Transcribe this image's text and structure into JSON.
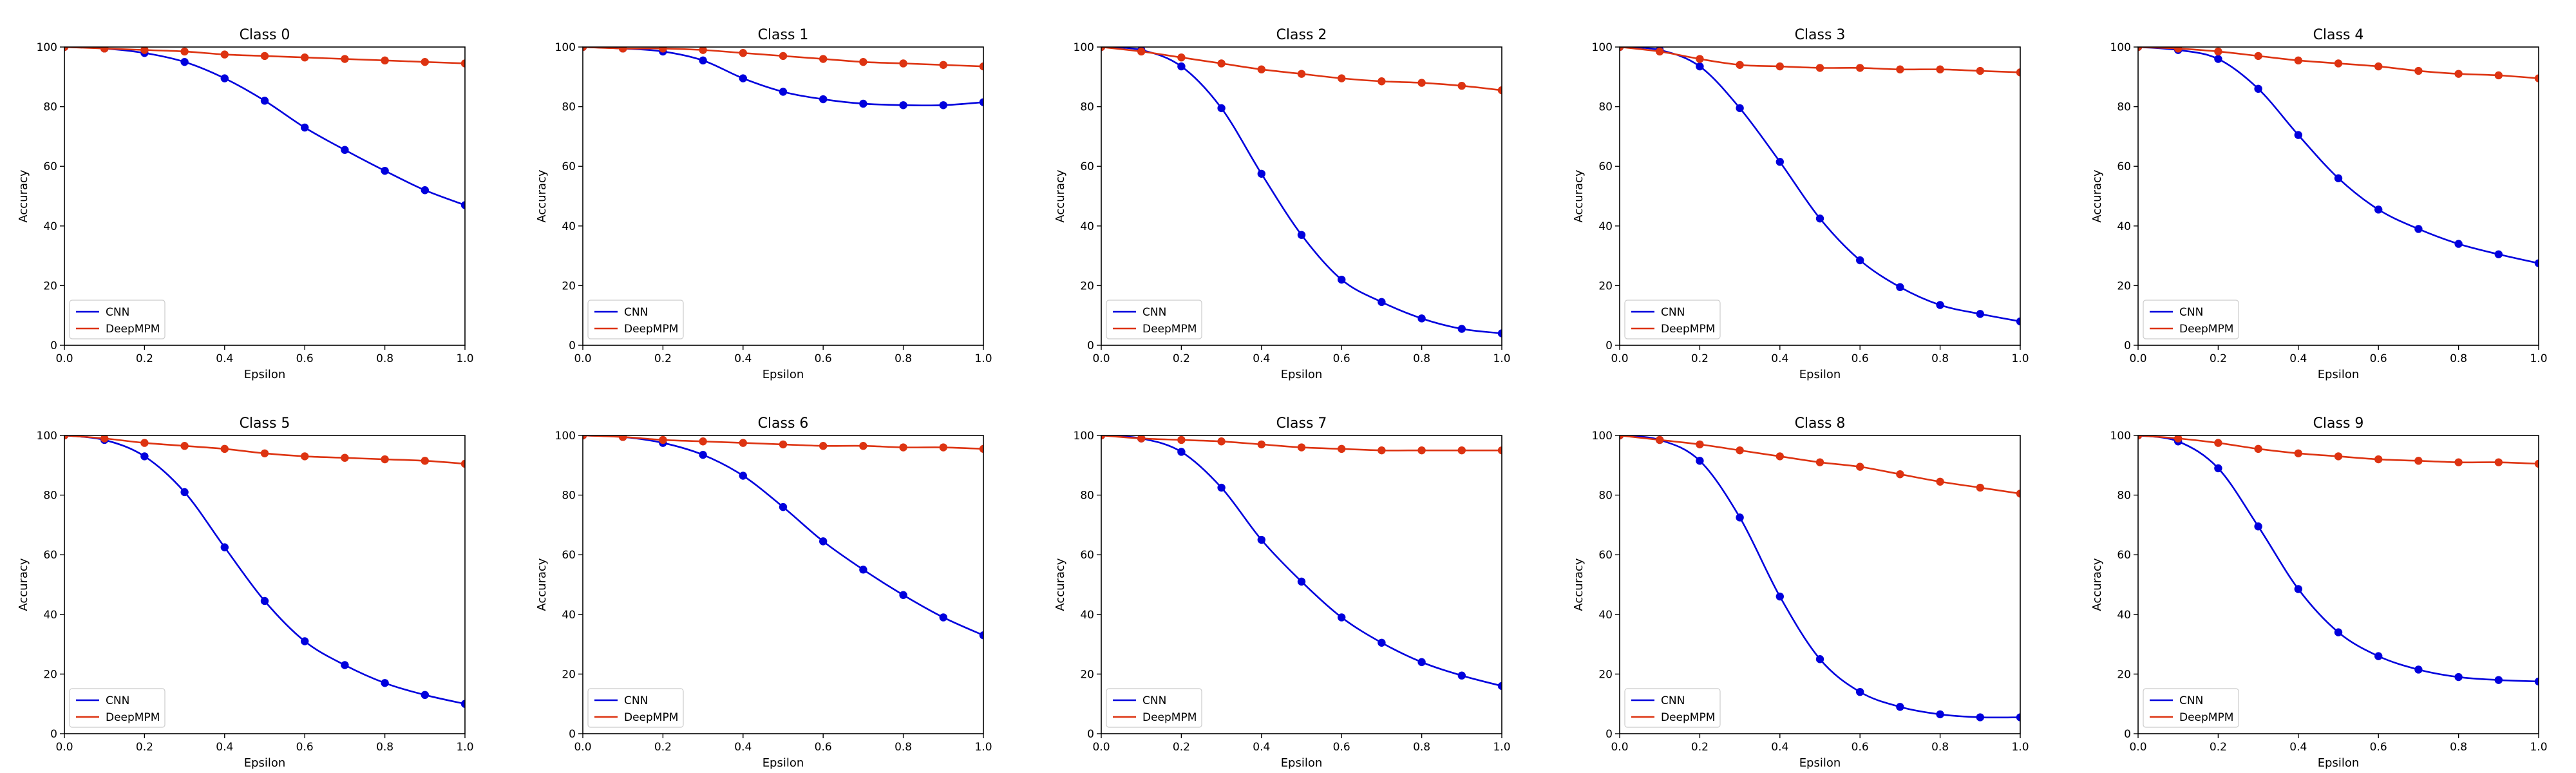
{
  "chart_data": [
    {
      "type": "line",
      "title": "Class 0",
      "xlabel": "Epsilon",
      "ylabel": "Accuracy",
      "xlim": [
        0,
        1
      ],
      "ylim": [
        0,
        100
      ],
      "xticks": [
        "0.0",
        "0.2",
        "0.4",
        "0.6",
        "0.8",
        "1.0"
      ],
      "yticks": [
        "0",
        "20",
        "40",
        "60",
        "80",
        "100"
      ],
      "x": [
        0,
        0.1,
        0.2,
        0.3,
        0.4,
        0.5,
        0.6,
        0.7,
        0.8,
        0.9,
        1.0
      ],
      "series": [
        {
          "name": "CNN",
          "color": "#0000dd",
          "values": [
            100,
            99.5,
            98,
            95,
            89.5,
            82,
            73,
            65.5,
            58.5,
            52,
            47
          ]
        },
        {
          "name": "DeepMPM",
          "color": "#dd3311",
          "values": [
            100,
            99.5,
            99,
            98.5,
            97.5,
            97,
            96.5,
            96,
            95.5,
            95,
            94.5
          ]
        }
      ],
      "legend": "lower-left",
      "grid": false
    },
    {
      "type": "line",
      "title": "Class 1",
      "xlabel": "Epsilon",
      "ylabel": "Accuracy",
      "xlim": [
        0,
        1
      ],
      "ylim": [
        0,
        100
      ],
      "xticks": [
        "0.0",
        "0.2",
        "0.4",
        "0.6",
        "0.8",
        "1.0"
      ],
      "yticks": [
        "0",
        "20",
        "40",
        "60",
        "80",
        "100"
      ],
      "x": [
        0,
        0.1,
        0.2,
        0.3,
        0.4,
        0.5,
        0.6,
        0.7,
        0.8,
        0.9,
        1.0
      ],
      "series": [
        {
          "name": "CNN",
          "color": "#0000dd",
          "values": [
            100,
            99.5,
            98.5,
            95.5,
            89.5,
            85,
            82.5,
            81,
            80.5,
            80.5,
            81.5
          ]
        },
        {
          "name": "DeepMPM",
          "color": "#dd3311",
          "values": [
            100,
            99.5,
            99.5,
            99,
            98,
            97,
            96,
            95,
            94.5,
            94,
            93.5
          ]
        }
      ],
      "legend": "lower-left",
      "grid": false
    },
    {
      "type": "line",
      "title": "Class 2",
      "xlabel": "Epsilon",
      "ylabel": "Accuracy",
      "xlim": [
        0,
        1
      ],
      "ylim": [
        0,
        100
      ],
      "xticks": [
        "0.0",
        "0.2",
        "0.4",
        "0.6",
        "0.8",
        "1.0"
      ],
      "yticks": [
        "0",
        "20",
        "40",
        "60",
        "80",
        "100"
      ],
      "x": [
        0,
        0.1,
        0.2,
        0.3,
        0.4,
        0.5,
        0.6,
        0.7,
        0.8,
        0.9,
        1.0
      ],
      "series": [
        {
          "name": "CNN",
          "color": "#0000dd",
          "values": [
            100,
            99,
            93.5,
            79.5,
            57.5,
            37,
            22,
            14.5,
            9,
            5.5,
            4
          ]
        },
        {
          "name": "DeepMPM",
          "color": "#dd3311",
          "values": [
            100,
            98.5,
            96.5,
            94.5,
            92.5,
            91,
            89.5,
            88.5,
            88,
            87,
            85.5
          ]
        }
      ],
      "legend": "lower-left",
      "grid": false
    },
    {
      "type": "line",
      "title": "Class 3",
      "xlabel": "Epsilon",
      "ylabel": "Accuracy",
      "xlim": [
        0,
        1
      ],
      "ylim": [
        0,
        100
      ],
      "xticks": [
        "0.0",
        "0.2",
        "0.4",
        "0.6",
        "0.8",
        "1.0"
      ],
      "yticks": [
        "0",
        "20",
        "40",
        "60",
        "80",
        "100"
      ],
      "x": [
        0,
        0.1,
        0.2,
        0.3,
        0.4,
        0.5,
        0.6,
        0.7,
        0.8,
        0.9,
        1.0
      ],
      "series": [
        {
          "name": "CNN",
          "color": "#0000dd",
          "values": [
            100,
            99,
            93.5,
            79.5,
            61.5,
            42.5,
            28.5,
            19.5,
            13.5,
            10.5,
            8
          ]
        },
        {
          "name": "DeepMPM",
          "color": "#dd3311",
          "values": [
            100,
            98.5,
            96,
            94,
            93.5,
            93,
            93,
            92.5,
            92.5,
            92,
            91.5
          ]
        }
      ],
      "legend": "lower-left",
      "grid": false
    },
    {
      "type": "line",
      "title": "Class 4",
      "xlabel": "Epsilon",
      "ylabel": "Accuracy",
      "xlim": [
        0,
        1
      ],
      "ylim": [
        0,
        100
      ],
      "xticks": [
        "0.0",
        "0.2",
        "0.4",
        "0.6",
        "0.8",
        "1.0"
      ],
      "yticks": [
        "0",
        "20",
        "40",
        "60",
        "80",
        "100"
      ],
      "x": [
        0,
        0.1,
        0.2,
        0.3,
        0.4,
        0.5,
        0.6,
        0.7,
        0.8,
        0.9,
        1.0
      ],
      "series": [
        {
          "name": "CNN",
          "color": "#0000dd",
          "values": [
            100,
            99,
            96,
            86,
            70.5,
            56,
            45.5,
            39,
            34,
            30.5,
            27.5
          ]
        },
        {
          "name": "DeepMPM",
          "color": "#dd3311",
          "values": [
            100,
            99.5,
            98.5,
            97,
            95.5,
            94.5,
            93.5,
            92,
            91,
            90.5,
            89.5
          ]
        }
      ],
      "legend": "lower-left",
      "grid": false
    },
    {
      "type": "line",
      "title": "Class 5",
      "xlabel": "Epsilon",
      "ylabel": "Accuracy",
      "xlim": [
        0,
        1
      ],
      "ylim": [
        0,
        100
      ],
      "xticks": [
        "0.0",
        "0.2",
        "0.4",
        "0.6",
        "0.8",
        "1.0"
      ],
      "yticks": [
        "0",
        "20",
        "40",
        "60",
        "80",
        "100"
      ],
      "x": [
        0,
        0.1,
        0.2,
        0.3,
        0.4,
        0.5,
        0.6,
        0.7,
        0.8,
        0.9,
        1.0
      ],
      "series": [
        {
          "name": "CNN",
          "color": "#0000dd",
          "values": [
            100,
            98.5,
            93,
            81,
            62.5,
            44.5,
            31,
            23,
            17,
            13,
            10
          ]
        },
        {
          "name": "DeepMPM",
          "color": "#dd3311",
          "values": [
            100,
            99,
            97.5,
            96.5,
            95.5,
            94,
            93,
            92.5,
            92,
            91.5,
            90.5
          ]
        }
      ],
      "legend": "lower-left",
      "grid": false
    },
    {
      "type": "line",
      "title": "Class 6",
      "xlabel": "Epsilon",
      "ylabel": "Accuracy",
      "xlim": [
        0,
        1
      ],
      "ylim": [
        0,
        100
      ],
      "xticks": [
        "0.0",
        "0.2",
        "0.4",
        "0.6",
        "0.8",
        "1.0"
      ],
      "yticks": [
        "0",
        "20",
        "40",
        "60",
        "80",
        "100"
      ],
      "x": [
        0,
        0.1,
        0.2,
        0.3,
        0.4,
        0.5,
        0.6,
        0.7,
        0.8,
        0.9,
        1.0
      ],
      "series": [
        {
          "name": "CNN",
          "color": "#0000dd",
          "values": [
            100,
            99.5,
            97.5,
            93.5,
            86.5,
            76,
            64.5,
            55,
            46.5,
            39,
            33
          ]
        },
        {
          "name": "DeepMPM",
          "color": "#dd3311",
          "values": [
            100,
            99.5,
            98.5,
            98,
            97.5,
            97,
            96.5,
            96.5,
            96,
            96,
            95.5
          ]
        }
      ],
      "legend": "lower-left",
      "grid": false
    },
    {
      "type": "line",
      "title": "Class 7",
      "xlabel": "Epsilon",
      "ylabel": "Accuracy",
      "xlim": [
        0,
        1
      ],
      "ylim": [
        0,
        100
      ],
      "xticks": [
        "0.0",
        "0.2",
        "0.4",
        "0.6",
        "0.8",
        "1.0"
      ],
      "yticks": [
        "0",
        "20",
        "40",
        "60",
        "80",
        "100"
      ],
      "x": [
        0,
        0.1,
        0.2,
        0.3,
        0.4,
        0.5,
        0.6,
        0.7,
        0.8,
        0.9,
        1.0
      ],
      "series": [
        {
          "name": "CNN",
          "color": "#0000dd",
          "values": [
            100,
            99,
            94.5,
            82.5,
            65,
            51,
            39,
            30.5,
            24,
            19.5,
            16
          ]
        },
        {
          "name": "DeepMPM",
          "color": "#dd3311",
          "values": [
            100,
            99,
            98.5,
            98,
            97,
            96,
            95.5,
            95,
            95,
            95,
            95
          ]
        }
      ],
      "legend": "lower-left",
      "grid": false
    },
    {
      "type": "line",
      "title": "Class 8",
      "xlabel": "Epsilon",
      "ylabel": "Accuracy",
      "xlim": [
        0,
        1
      ],
      "ylim": [
        0,
        100
      ],
      "xticks": [
        "0.0",
        "0.2",
        "0.4",
        "0.6",
        "0.8",
        "1.0"
      ],
      "yticks": [
        "0",
        "20",
        "40",
        "60",
        "80",
        "100"
      ],
      "x": [
        0,
        0.1,
        0.2,
        0.3,
        0.4,
        0.5,
        0.6,
        0.7,
        0.8,
        0.9,
        1.0
      ],
      "series": [
        {
          "name": "CNN",
          "color": "#0000dd",
          "values": [
            100,
            98.5,
            91.5,
            72.5,
            46,
            25,
            14,
            9,
            6.5,
            5.5,
            5.5
          ]
        },
        {
          "name": "DeepMPM",
          "color": "#dd3311",
          "values": [
            100,
            98.5,
            97,
            95,
            93,
            91,
            89.5,
            87,
            84.5,
            82.5,
            80.5
          ]
        }
      ],
      "legend": "lower-left",
      "grid": false
    },
    {
      "type": "line",
      "title": "Class 9",
      "xlabel": "Epsilon",
      "ylabel": "Accuracy",
      "xlim": [
        0,
        1
      ],
      "ylim": [
        0,
        100
      ],
      "xticks": [
        "0.0",
        "0.2",
        "0.4",
        "0.6",
        "0.8",
        "1.0"
      ],
      "yticks": [
        "0",
        "20",
        "40",
        "60",
        "80",
        "100"
      ],
      "x": [
        0,
        0.1,
        0.2,
        0.3,
        0.4,
        0.5,
        0.6,
        0.7,
        0.8,
        0.9,
        1.0
      ],
      "series": [
        {
          "name": "CNN",
          "color": "#0000dd",
          "values": [
            100,
            98,
            89,
            69.5,
            48.5,
            34,
            26,
            21.5,
            19,
            18,
            17.5
          ]
        },
        {
          "name": "DeepMPM",
          "color": "#dd3311",
          "values": [
            100,
            99,
            97.5,
            95.5,
            94,
            93,
            92,
            91.5,
            91,
            91,
            90.5
          ]
        }
      ],
      "legend": "lower-left",
      "grid": false
    }
  ]
}
